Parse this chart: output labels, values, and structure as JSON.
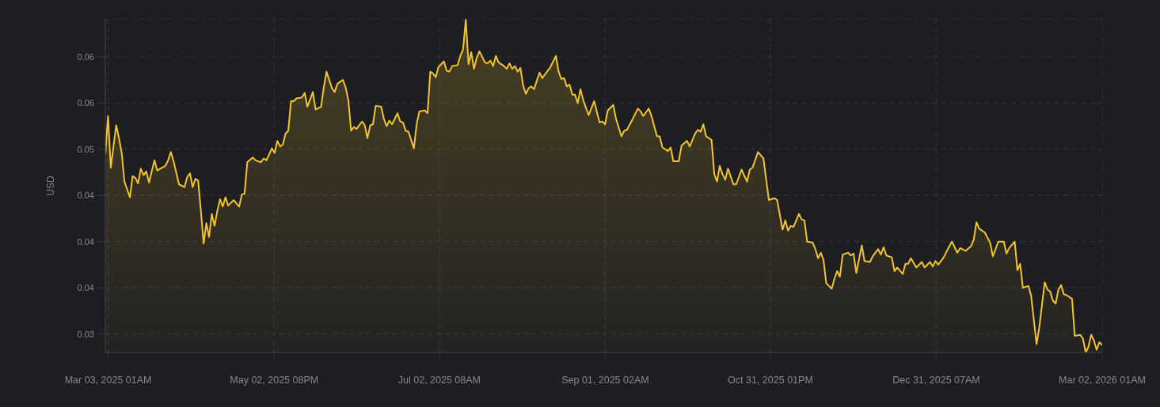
{
  "chart_data": {
    "type": "area",
    "ylabel": "USD",
    "color": "#f4c430",
    "grid": true,
    "xlim": [
      "2025-03-02",
      "2026-03-02T01:00"
    ],
    "ylim": [
      0.028,
      0.0641
    ],
    "xticks": [
      {
        "value": "2025-03-03T01:00",
        "label": "Mar 03, 2025 01AM"
      },
      {
        "value": "2025-05-02T20:00",
        "label": "May 02, 2025 08PM"
      },
      {
        "value": "2025-07-02T08:00",
        "label": "Jul 02, 2025 08AM"
      },
      {
        "value": "2025-09-01T02:00",
        "label": "Sep 01, 2025 02AM"
      },
      {
        "value": "2025-10-31T13:00",
        "label": "Oct 31, 2025 01PM"
      },
      {
        "value": "2025-12-31T07:00",
        "label": "Dec 31, 2025 07AM"
      },
      {
        "value": "2026-03-02T01:00",
        "label": "Mar 02, 2026 01AM"
      }
    ],
    "yticks": [
      0.03,
      {
        "value": 0.035,
        "label": "0.04"
      },
      0.04,
      {
        "value": 0.045,
        "label": "0.04"
      },
      0.05,
      {
        "value": 0.055,
        "label": "0.06"
      },
      0.06
    ],
    "x": [
      "2025-03-02",
      "2025-03-03",
      "2025-03-04",
      "2025-03-06",
      "2025-03-07",
      "2025-03-08",
      "2025-03-09",
      "2025-03-11",
      "2025-03-12",
      "2025-03-13",
      "2025-03-14",
      "2025-03-15",
      "2025-03-16",
      "2025-03-17",
      "2025-03-18",
      "2025-03-20",
      "2025-03-21",
      "2025-03-24",
      "2025-03-25",
      "2025-03-26",
      "2025-03-27",
      "2025-03-29",
      "2025-03-31",
      "2025-04-01",
      "2025-04-02",
      "2025-04-03",
      "2025-04-04",
      "2025-04-05",
      "2025-04-06",
      "2025-04-07",
      "2025-04-08",
      "2025-04-09",
      "2025-04-10",
      "2025-04-11",
      "2025-04-12",
      "2025-04-13",
      "2025-04-14",
      "2025-04-15",
      "2025-04-16",
      "2025-04-18",
      "2025-04-20",
      "2025-04-21",
      "2025-04-22",
      "2025-04-23",
      "2025-04-25",
      "2025-04-26",
      "2025-04-28",
      "2025-04-29",
      "2025-04-30",
      "2025-05-02",
      "2025-05-03",
      "2025-05-04",
      "2025-05-05",
      "2025-05-06",
      "2025-05-07",
      "2025-05-08",
      "2025-05-09",
      "2025-05-10",
      "2025-05-11",
      "2025-05-13",
      "2025-05-14",
      "2025-05-15",
      "2025-05-17",
      "2025-05-18",
      "2025-05-20",
      "2025-05-21",
      "2025-05-22",
      "2025-05-24",
      "2025-05-25",
      "2025-05-26",
      "2025-05-28",
      "2025-05-29",
      "2025-05-30",
      "2025-05-31",
      "2025-06-01",
      "2025-06-02",
      "2025-06-04",
      "2025-06-05",
      "2025-06-06",
      "2025-06-07",
      "2025-06-08",
      "2025-06-09",
      "2025-06-11",
      "2025-06-12",
      "2025-06-13",
      "2025-06-14",
      "2025-06-15",
      "2025-06-17",
      "2025-06-18",
      "2025-06-19",
      "2025-06-20",
      "2025-06-21",
      "2025-06-23",
      "2025-06-24",
      "2025-06-25",
      "2025-06-27",
      "2025-06-28",
      "2025-06-29",
      "2025-06-30",
      "2025-07-01",
      "2025-07-02",
      "2025-07-04",
      "2025-07-05",
      "2025-07-06",
      "2025-07-07",
      "2025-07-09",
      "2025-07-10",
      "2025-07-11",
      "2025-07-12",
      "2025-07-13",
      "2025-07-14",
      "2025-07-15",
      "2025-07-16",
      "2025-07-17",
      "2025-07-19",
      "2025-07-20",
      "2025-07-21",
      "2025-07-22",
      "2025-07-23",
      "2025-07-24",
      "2025-07-26",
      "2025-07-27",
      "2025-07-28",
      "2025-07-29",
      "2025-07-30",
      "2025-07-31",
      "2025-08-01",
      "2025-08-02",
      "2025-08-03",
      "2025-08-04",
      "2025-08-05",
      "2025-08-06",
      "2025-08-08",
      "2025-08-09",
      "2025-08-10",
      "2025-08-12",
      "2025-08-14",
      "2025-08-15",
      "2025-08-16",
      "2025-08-17",
      "2025-08-18",
      "2025-08-19",
      "2025-08-20",
      "2025-08-21",
      "2025-08-22",
      "2025-08-23",
      "2025-08-24",
      "2025-08-26",
      "2025-08-28",
      "2025-08-30",
      "2025-08-31",
      "2025-09-01",
      "2025-09-02",
      "2025-09-04",
      "2025-09-05",
      "2025-09-07",
      "2025-09-08",
      "2025-09-09",
      "2025-09-11",
      "2025-09-13",
      "2025-09-14",
      "2025-09-15",
      "2025-09-17",
      "2025-09-18",
      "2025-09-20",
      "2025-09-21",
      "2025-09-22",
      "2025-09-24",
      "2025-09-25",
      "2025-09-26",
      "2025-09-28",
      "2025-09-29",
      "2025-10-01",
      "2025-10-02",
      "2025-10-04",
      "2025-10-05",
      "2025-10-06",
      "2025-10-07",
      "2025-10-08",
      "2025-10-10",
      "2025-10-11",
      "2025-10-12",
      "2025-10-13",
      "2025-10-14",
      "2025-10-15",
      "2025-10-16",
      "2025-10-18",
      "2025-10-19",
      "2025-10-21",
      "2025-10-23",
      "2025-10-24",
      "2025-10-25",
      "2025-10-27",
      "2025-10-29",
      "2025-10-30",
      "2025-10-31",
      "2025-11-02",
      "2025-11-03",
      "2025-11-05",
      "2025-11-06",
      "2025-11-07",
      "2025-11-08",
      "2025-11-09",
      "2025-11-11",
      "2025-11-12",
      "2025-11-13",
      "2025-11-14",
      "2025-11-16",
      "2025-11-17",
      "2025-11-18",
      "2025-11-19",
      "2025-11-20",
      "2025-11-21",
      "2025-11-23",
      "2025-11-24",
      "2025-11-25",
      "2025-11-26",
      "2025-11-27",
      "2025-11-29",
      "2025-11-30",
      "2025-12-01",
      "2025-12-02",
      "2025-12-04",
      "2025-12-05",
      "2025-12-07",
      "2025-12-08",
      "2025-12-10",
      "2025-12-11",
      "2025-12-12",
      "2025-12-13",
      "2025-12-15",
      "2025-12-16",
      "2025-12-17",
      "2025-12-19",
      "2025-12-20",
      "2025-12-21",
      "2025-12-22",
      "2025-12-24",
      "2025-12-26",
      "2025-12-27",
      "2025-12-29",
      "2025-12-30",
      "2025-12-31",
      "2026-01-01",
      "2026-01-03",
      "2026-01-04",
      "2026-01-06",
      "2026-01-08",
      "2026-01-09",
      "2026-01-11",
      "2026-01-13",
      "2026-01-14",
      "2026-01-15",
      "2026-01-16",
      "2026-01-18",
      "2026-01-20",
      "2026-01-21",
      "2026-01-23",
      "2026-01-25",
      "2026-01-26",
      "2026-01-27",
      "2026-01-29",
      "2026-01-30",
      "2026-01-31",
      "2026-02-01",
      "2026-02-03",
      "2026-02-04",
      "2026-02-06",
      "2026-02-07",
      "2026-02-09",
      "2026-02-10",
      "2026-02-11",
      "2026-02-12",
      "2026-02-13",
      "2026-02-14",
      "2026-02-15",
      "2026-02-16",
      "2026-02-17",
      "2026-02-19",
      "2026-02-20",
      "2026-02-22",
      "2026-02-23",
      "2026-02-24",
      "2026-02-25",
      "2026-02-26",
      "2026-02-27",
      "2026-02-28",
      "2026-03-01",
      "2026-03-02"
    ],
    "values": [
      0.0495,
      0.0536,
      0.048,
      0.0526,
      0.0512,
      0.0496,
      0.0465,
      0.0448,
      0.0471,
      0.0469,
      0.0463,
      0.0479,
      0.0472,
      0.0476,
      0.0464,
      0.0488,
      0.0477,
      0.0482,
      0.0488,
      0.0497,
      0.0487,
      0.0462,
      0.0459,
      0.047,
      0.0474,
      0.0459,
      0.0468,
      0.0466,
      0.0433,
      0.0398,
      0.042,
      0.0405,
      0.043,
      0.0417,
      0.0433,
      0.0446,
      0.0438,
      0.0448,
      0.0439,
      0.0445,
      0.0438,
      0.0451,
      0.0452,
      0.0486,
      0.0491,
      0.0488,
      0.0486,
      0.049,
      0.0488,
      0.0501,
      0.0496,
      0.0509,
      0.0503,
      0.0505,
      0.0517,
      0.052,
      0.0552,
      0.0552,
      0.0555,
      0.0556,
      0.0561,
      0.0546,
      0.0562,
      0.0543,
      0.0546,
      0.0567,
      0.0584,
      0.0566,
      0.0562,
      0.0571,
      0.0575,
      0.0567,
      0.0553,
      0.052,
      0.0524,
      0.0522,
      0.053,
      0.0526,
      0.0512,
      0.0526,
      0.0527,
      0.0547,
      0.0546,
      0.0533,
      0.0525,
      0.0531,
      0.0527,
      0.0539,
      0.053,
      0.0529,
      0.052,
      0.0519,
      0.0501,
      0.0527,
      0.0541,
      0.0542,
      0.0539,
      0.0584,
      0.0582,
      0.0578,
      0.0589,
      0.0595,
      0.0585,
      0.0584,
      0.059,
      0.0591,
      0.0601,
      0.0608,
      0.064,
      0.0592,
      0.0605,
      0.0587,
      0.0599,
      0.0606,
      0.0594,
      0.0593,
      0.0596,
      0.059,
      0.0601,
      0.0594,
      0.059,
      0.0587,
      0.0593,
      0.0587,
      0.059,
      0.0584,
      0.0588,
      0.0569,
      0.056,
      0.0566,
      0.0568,
      0.0565,
      0.0583,
      0.0577,
      0.0581,
      0.0589,
      0.0601,
      0.0584,
      0.0576,
      0.0577,
      0.0568,
      0.057,
      0.0559,
      0.0559,
      0.055,
      0.0565,
      0.0553,
      0.0537,
      0.0552,
      0.0529,
      0.053,
      0.0527,
      0.0542,
      0.0548,
      0.0533,
      0.0514,
      0.052,
      0.0521,
      0.0532,
      0.0544,
      0.0541,
      0.0536,
      0.0544,
      0.0536,
      0.0514,
      0.0514,
      0.0502,
      0.0498,
      0.0502,
      0.0487,
      0.0487,
      0.0504,
      0.0509,
      0.0503,
      0.0517,
      0.0521,
      0.0519,
      0.0527,
      0.0514,
      0.051,
      0.0473,
      0.0465,
      0.0482,
      0.0473,
      0.0467,
      0.0479,
      0.0462,
      0.0462,
      0.0478,
      0.0465,
      0.0478,
      0.048,
      0.0497,
      0.049,
      0.0467,
      0.0445,
      0.0447,
      0.0445,
      0.0413,
      0.0423,
      0.0412,
      0.0417,
      0.0416,
      0.043,
      0.0424,
      0.0423,
      0.04,
      0.0399,
      0.0392,
      0.0382,
      0.0388,
      0.038,
      0.0355,
      0.0349,
      0.036,
      0.0368,
      0.0362,
      0.0386,
      0.0388,
      0.0385,
      0.0387,
      0.0366,
      0.0396,
      0.0379,
      0.0378,
      0.0384,
      0.0392,
      0.0386,
      0.0394,
      0.0385,
      0.0383,
      0.0368,
      0.0372,
      0.0365,
      0.0376,
      0.0376,
      0.0382,
      0.0372,
      0.0378,
      0.0372,
      0.0378,
      0.0373,
      0.0379,
      0.0375,
      0.0383,
      0.0389,
      0.04,
      0.0388,
      0.0393,
      0.039,
      0.0395,
      0.0402,
      0.0421,
      0.0414,
      0.041,
      0.0399,
      0.0384,
      0.04,
      0.04,
      0.0387,
      0.0393,
      0.04,
      0.0369,
      0.0376,
      0.035,
      0.0352,
      0.0342,
      0.0289,
      0.0307,
      0.0356,
      0.0348,
      0.0346,
      0.0336,
      0.0333,
      0.0348,
      0.0353,
      0.0343,
      0.0342,
      0.0338,
      0.0298,
      0.0299,
      0.0295,
      0.028,
      0.0286,
      0.0299,
      0.0293,
      0.0283,
      0.0291,
      0.0288
    ]
  }
}
